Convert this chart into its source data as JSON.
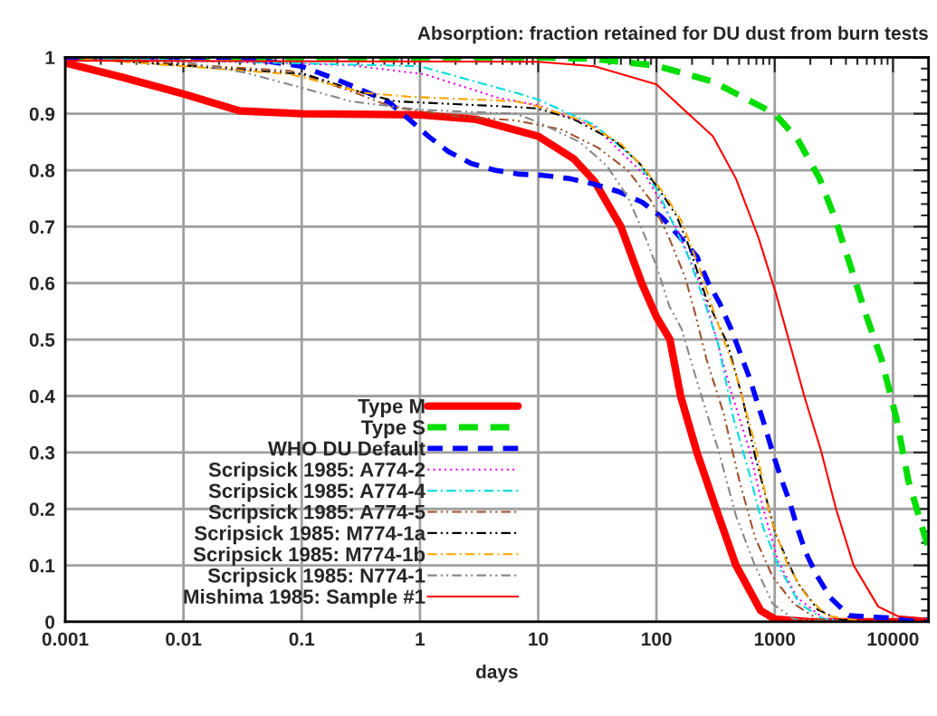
{
  "chart_data": {
    "type": "line",
    "title": "Absorption: fraction retained for DU dust from burn tests",
    "xlabel": "days",
    "log": "x",
    "xlim": [
      0.001,
      20000
    ],
    "xticks": [
      0.001,
      0.01,
      0.1,
      1,
      10,
      100,
      1000,
      10000
    ],
    "ylim": [
      0,
      1
    ],
    "yticks": [
      0,
      0.1,
      0.2,
      0.3,
      0.4,
      0.5,
      0.6,
      0.7,
      0.8,
      0.9,
      1
    ],
    "grid": true,
    "legend": "bottom left",
    "series": [
      {
        "name": "Type M",
        "color": "#ff0000",
        "line_style": "solid",
        "x": [
          0.001,
          0.003,
          0.01,
          0.03,
          0.1,
          1,
          3,
          10,
          20,
          30,
          50,
          75,
          100,
          130,
          160,
          220,
          320,
          470,
          760,
          1000,
          2000,
          20000
        ],
        "values": [
          0.99,
          0.965,
          0.935,
          0.905,
          0.9,
          0.898,
          0.89,
          0.86,
          0.82,
          0.78,
          0.7,
          0.6,
          0.54,
          0.5,
          0.4,
          0.3,
          0.2,
          0.1,
          0.02,
          0.005,
          0,
          0
        ]
      },
      {
        "name": "Type S",
        "color": "#00dd00",
        "line_style": "dashed",
        "x": [
          0.001,
          10,
          30,
          100,
          300,
          1000,
          1550,
          2400,
          3300,
          4450,
          6000,
          8000,
          10700,
          13500,
          19000,
          20000
        ],
        "values": [
          1,
          1,
          0.997,
          0.985,
          0.957,
          0.9,
          0.856,
          0.785,
          0.71,
          0.625,
          0.54,
          0.465,
          0.36,
          0.25,
          0.145,
          0.13
        ]
      },
      {
        "name": "WHO DU Default",
        "color": "#0000ff",
        "line_style": "dashed",
        "x": [
          0.001,
          0.03,
          0.1,
          0.19,
          0.34,
          0.55,
          0.81,
          1.18,
          1.74,
          2.7,
          4.3,
          6.9,
          11,
          18.6,
          30,
          48,
          76,
          112,
          154,
          220,
          275,
          343,
          425,
          610,
          830,
          960,
          1120,
          1340,
          1550,
          1830,
          2260,
          2950,
          4250,
          20000
        ],
        "values": [
          1,
          1,
          0.984,
          0.962,
          0.94,
          0.92,
          0.89,
          0.86,
          0.833,
          0.812,
          0.8,
          0.793,
          0.791,
          0.785,
          0.775,
          0.762,
          0.743,
          0.716,
          0.684,
          0.647,
          0.6,
          0.564,
          0.52,
          0.433,
          0.345,
          0.3,
          0.257,
          0.212,
          0.167,
          0.123,
          0.083,
          0.043,
          0.011,
          0.003
        ]
      },
      {
        "name": "Scripsick 1985: A774-2",
        "color": "#ee00ee",
        "line_style": "dotted",
        "x": [
          0.001,
          0.26,
          1.1,
          4.6,
          10,
          30,
          81,
          154,
          250,
          425,
          610,
          800,
          1070,
          1550,
          2600,
          5000,
          20000
        ],
        "values": [
          1,
          0.986,
          0.97,
          0.928,
          0.915,
          0.877,
          0.79,
          0.69,
          0.583,
          0.41,
          0.305,
          0.2,
          0.107,
          0.043,
          0.006,
          0,
          0
        ]
      },
      {
        "name": "Scripsick 1985: A774-4",
        "color": "#00dddd",
        "line_style": "dashdot",
        "x": [
          0.001,
          1,
          6.5,
          10,
          30,
          68,
          102,
          128,
          186,
          250,
          333,
          450,
          610,
          800,
          1070,
          1620,
          2600,
          5000,
          20000
        ],
        "values": [
          1,
          0.984,
          0.937,
          0.925,
          0.88,
          0.817,
          0.764,
          0.72,
          0.647,
          0.572,
          0.492,
          0.359,
          0.263,
          0.167,
          0.1,
          0.032,
          0.005,
          0,
          0
        ]
      },
      {
        "name": "Scripsick 1985: A774-5",
        "color": "#a0522d",
        "line_style": "dashdotdot",
        "x": [
          0.001,
          0.08,
          0.26,
          0.58,
          2,
          6.5,
          15.7,
          32,
          57,
          92,
          128,
          175,
          210,
          265,
          370,
          500,
          680,
          960,
          1450,
          2300,
          5000,
          20000
        ],
        "values": [
          1,
          0.976,
          0.94,
          0.912,
          0.896,
          0.888,
          0.872,
          0.84,
          0.8,
          0.743,
          0.68,
          0.61,
          0.55,
          0.465,
          0.369,
          0.252,
          0.15,
          0.08,
          0.032,
          0.005,
          0,
          0
        ]
      },
      {
        "name": "Scripsick 1985: M774-1a",
        "color": "#000000",
        "line_style": "dashdotdot",
        "x": [
          0.001,
          0.107,
          0.34,
          0.62,
          2,
          6.5,
          10,
          20,
          46,
          72,
          102,
          147,
          186,
          265,
          400,
          535,
          680,
          1020,
          1550,
          2300,
          3500,
          6000,
          20000
        ],
        "values": [
          1,
          0.97,
          0.936,
          0.922,
          0.917,
          0.912,
          0.909,
          0.89,
          0.85,
          0.812,
          0.77,
          0.72,
          0.668,
          0.572,
          0.492,
          0.396,
          0.295,
          0.155,
          0.07,
          0.022,
          0.004,
          0,
          0
        ]
      },
      {
        "name": "Scripsick 1985: M774-1b",
        "color": "#ffa500",
        "line_style": "dashdot",
        "x": [
          0.001,
          0.08,
          0.34,
          0.83,
          6.5,
          10,
          23.5,
          51,
          81,
          115,
          163,
          232,
          316,
          470,
          680,
          910,
          1290,
          1830,
          2750,
          6000,
          20000
        ],
        "values": [
          1,
          0.97,
          0.937,
          0.93,
          0.922,
          0.913,
          0.888,
          0.845,
          0.8,
          0.76,
          0.71,
          0.625,
          0.54,
          0.439,
          0.316,
          0.188,
          0.1,
          0.048,
          0.011,
          0,
          0
        ]
      },
      {
        "name": "Scripsick 1985: N774-1",
        "color": "#888888",
        "line_style": "dashdotdot",
        "x": [
          0.001,
          0.01,
          0.033,
          0.1,
          0.26,
          1,
          6.5,
          10,
          22.4,
          38,
          57,
          81,
          102,
          128,
          163,
          232,
          333,
          470,
          680,
          960,
          1450,
          3000,
          20000
        ],
        "values": [
          1,
          0.992,
          0.973,
          0.946,
          0.922,
          0.907,
          0.9,
          0.885,
          0.85,
          0.808,
          0.753,
          0.68,
          0.625,
          0.56,
          0.519,
          0.41,
          0.305,
          0.188,
          0.1,
          0.032,
          0.005,
          0,
          0
        ]
      },
      {
        "name": "Mishima 1985: Sample #1",
        "color": "#ff0000",
        "line_style": "solid",
        "x": [
          0.001,
          10,
          30,
          100,
          300,
          470,
          730,
          1020,
          1800,
          2450,
          3300,
          4650,
          7500,
          11000,
          20000
        ],
        "values": [
          0.994,
          0.992,
          0.984,
          0.952,
          0.86,
          0.785,
          0.68,
          0.583,
          0.396,
          0.305,
          0.2,
          0.1,
          0.027,
          0.01,
          0.005
        ]
      }
    ]
  }
}
